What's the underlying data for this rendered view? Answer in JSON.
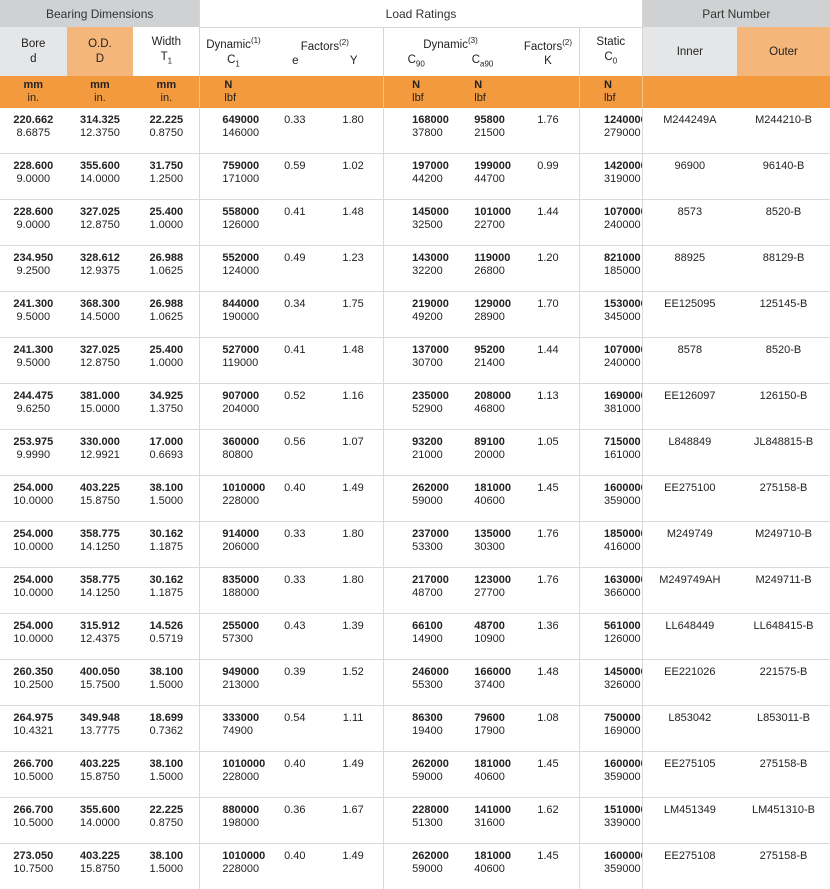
{
  "headers": {
    "bearing_dimensions": "Bearing Dimensions",
    "load_ratings": "Load Ratings",
    "part_number": "Part Number",
    "bore": "Bore",
    "bore_sym": "d",
    "od": "O.D.",
    "od_sym": "D",
    "width": "Width",
    "width_sym": "T",
    "width_sub": "1",
    "dynamic1": "Dynamic",
    "dynamic1_sup": "(1)",
    "dynamic1_sym": "C",
    "dynamic1_sub": "1",
    "factors2": "Factors",
    "factors2_sup": "(2)",
    "e": "e",
    "y": "Y",
    "dynamic3": "Dynamic",
    "dynamic3_sup": "(3)",
    "c90": "C",
    "c90_sub": "90",
    "ca90": "C",
    "ca90_sub": "a90",
    "factors2b": "Factors",
    "factors2b_sup": "(2)",
    "k": "K",
    "static": "Static",
    "c0": "C",
    "c0_sub": "0",
    "inner": "Inner",
    "outer": "Outer"
  },
  "units": {
    "mm": "mm",
    "in": "in.",
    "n": "N",
    "lbf": "lbf"
  },
  "rows": [
    {
      "bore_mm": "220.662",
      "bore_in": "8.6875",
      "od_mm": "314.325",
      "od_in": "12.3750",
      "w_mm": "22.225",
      "w_in": "0.8750",
      "c1_n": "649000",
      "c1_lbf": "146000",
      "e": "0.33",
      "y": "1.80",
      "c90_n": "168000",
      "c90_lbf": "37800",
      "ca90_n": "95800",
      "ca90_lbf": "21500",
      "k": "1.76",
      "c0_n": "1240000",
      "c0_lbf": "279000",
      "inner": "M244249A",
      "outer": "M244210-B"
    },
    {
      "bore_mm": "228.600",
      "bore_in": "9.0000",
      "od_mm": "355.600",
      "od_in": "14.0000",
      "w_mm": "31.750",
      "w_in": "1.2500",
      "c1_n": "759000",
      "c1_lbf": "171000",
      "e": "0.59",
      "y": "1.02",
      "c90_n": "197000",
      "c90_lbf": "44200",
      "ca90_n": "199000",
      "ca90_lbf": "44700",
      "k": "0.99",
      "c0_n": "1420000",
      "c0_lbf": "319000",
      "inner": "96900",
      "outer": "96140-B"
    },
    {
      "bore_mm": "228.600",
      "bore_in": "9.0000",
      "od_mm": "327.025",
      "od_in": "12.8750",
      "w_mm": "25.400",
      "w_in": "1.0000",
      "c1_n": "558000",
      "c1_lbf": "126000",
      "e": "0.41",
      "y": "1.48",
      "c90_n": "145000",
      "c90_lbf": "32500",
      "ca90_n": "101000",
      "ca90_lbf": "22700",
      "k": "1.44",
      "c0_n": "1070000",
      "c0_lbf": "240000",
      "inner": "8573",
      "outer": "8520-B"
    },
    {
      "bore_mm": "234.950",
      "bore_in": "9.2500",
      "od_mm": "328.612",
      "od_in": "12.9375",
      "w_mm": "26.988",
      "w_in": "1.0625",
      "c1_n": "552000",
      "c1_lbf": "124000",
      "e": "0.49",
      "y": "1.23",
      "c90_n": "143000",
      "c90_lbf": "32200",
      "ca90_n": "119000",
      "ca90_lbf": "26800",
      "k": "1.20",
      "c0_n": "821000",
      "c0_lbf": "185000",
      "inner": "88925",
      "outer": "88129-B"
    },
    {
      "bore_mm": "241.300",
      "bore_in": "9.5000",
      "od_mm": "368.300",
      "od_in": "14.5000",
      "w_mm": "26.988",
      "w_in": "1.0625",
      "c1_n": "844000",
      "c1_lbf": "190000",
      "e": "0.34",
      "y": "1.75",
      "c90_n": "219000",
      "c90_lbf": "49200",
      "ca90_n": "129000",
      "ca90_lbf": "28900",
      "k": "1.70",
      "c0_n": "1530000",
      "c0_lbf": "345000",
      "inner": "EE125095",
      "outer": "125145-B"
    },
    {
      "bore_mm": "241.300",
      "bore_in": "9.5000",
      "od_mm": "327.025",
      "od_in": "12.8750",
      "w_mm": "25.400",
      "w_in": "1.0000",
      "c1_n": "527000",
      "c1_lbf": "119000",
      "e": "0.41",
      "y": "1.48",
      "c90_n": "137000",
      "c90_lbf": "30700",
      "ca90_n": "95200",
      "ca90_lbf": "21400",
      "k": "1.44",
      "c0_n": "1070000",
      "c0_lbf": "240000",
      "inner": "8578",
      "outer": "8520-B"
    },
    {
      "bore_mm": "244.475",
      "bore_in": "9.6250",
      "od_mm": "381.000",
      "od_in": "15.0000",
      "w_mm": "34.925",
      "w_in": "1.3750",
      "c1_n": "907000",
      "c1_lbf": "204000",
      "e": "0.52",
      "y": "1.16",
      "c90_n": "235000",
      "c90_lbf": "52900",
      "ca90_n": "208000",
      "ca90_lbf": "46800",
      "k": "1.13",
      "c0_n": "1690000",
      "c0_lbf": "381000",
      "inner": "EE126097",
      "outer": "126150-B"
    },
    {
      "bore_mm": "253.975",
      "bore_in": "9.9990",
      "od_mm": "330.000",
      "od_in": "12.9921",
      "w_mm": "17.000",
      "w_in": "0.6693",
      "c1_n": "360000",
      "c1_lbf": "80800",
      "e": "0.56",
      "y": "1.07",
      "c90_n": "93200",
      "c90_lbf": "21000",
      "ca90_n": "89100",
      "ca90_lbf": "20000",
      "k": "1.05",
      "c0_n": "715000",
      "c0_lbf": "161000",
      "inner": "L848849",
      "outer": "JL848815-B"
    },
    {
      "bore_mm": "254.000",
      "bore_in": "10.0000",
      "od_mm": "403.225",
      "od_in": "15.8750",
      "w_mm": "38.100",
      "w_in": "1.5000",
      "c1_n": "1010000",
      "c1_lbf": "228000",
      "e": "0.40",
      "y": "1.49",
      "c90_n": "262000",
      "c90_lbf": "59000",
      "ca90_n": "181000",
      "ca90_lbf": "40600",
      "k": "1.45",
      "c0_n": "1600000",
      "c0_lbf": "359000",
      "inner": "EE275100",
      "outer": "275158-B"
    },
    {
      "bore_mm": "254.000",
      "bore_in": "10.0000",
      "od_mm": "358.775",
      "od_in": "14.1250",
      "w_mm": "30.162",
      "w_in": "1.1875",
      "c1_n": "914000",
      "c1_lbf": "206000",
      "e": "0.33",
      "y": "1.80",
      "c90_n": "237000",
      "c90_lbf": "53300",
      "ca90_n": "135000",
      "ca90_lbf": "30300",
      "k": "1.76",
      "c0_n": "1850000",
      "c0_lbf": "416000",
      "inner": "M249749",
      "outer": "M249710-B"
    },
    {
      "bore_mm": "254.000",
      "bore_in": "10.0000",
      "od_mm": "358.775",
      "od_in": "14.1250",
      "w_mm": "30.162",
      "w_in": "1.1875",
      "c1_n": "835000",
      "c1_lbf": "188000",
      "e": "0.33",
      "y": "1.80",
      "c90_n": "217000",
      "c90_lbf": "48700",
      "ca90_n": "123000",
      "ca90_lbf": "27700",
      "k": "1.76",
      "c0_n": "1630000",
      "c0_lbf": "366000",
      "inner": "M249749AH",
      "outer": "M249711-B"
    },
    {
      "bore_mm": "254.000",
      "bore_in": "10.0000",
      "od_mm": "315.912",
      "od_in": "12.4375",
      "w_mm": "14.526",
      "w_in": "0.5719",
      "c1_n": "255000",
      "c1_lbf": "57300",
      "e": "0.43",
      "y": "1.39",
      "c90_n": "66100",
      "c90_lbf": "14900",
      "ca90_n": "48700",
      "ca90_lbf": "10900",
      "k": "1.36",
      "c0_n": "561000",
      "c0_lbf": "126000",
      "inner": "LL648449",
      "outer": "LL648415-B"
    },
    {
      "bore_mm": "260.350",
      "bore_in": "10.2500",
      "od_mm": "400.050",
      "od_in": "15.7500",
      "w_mm": "38.100",
      "w_in": "1.5000",
      "c1_n": "949000",
      "c1_lbf": "213000",
      "e": "0.39",
      "y": "1.52",
      "c90_n": "246000",
      "c90_lbf": "55300",
      "ca90_n": "166000",
      "ca90_lbf": "37400",
      "k": "1.48",
      "c0_n": "1450000",
      "c0_lbf": "326000",
      "inner": "EE221026",
      "outer": "221575-B"
    },
    {
      "bore_mm": "264.975",
      "bore_in": "10.4321",
      "od_mm": "349.948",
      "od_in": "13.7775",
      "w_mm": "18.699",
      "w_in": "0.7362",
      "c1_n": "333000",
      "c1_lbf": "74900",
      "e": "0.54",
      "y": "1.11",
      "c90_n": "86300",
      "c90_lbf": "19400",
      "ca90_n": "79600",
      "ca90_lbf": "17900",
      "k": "1.08",
      "c0_n": "750000",
      "c0_lbf": "169000",
      "inner": "L853042",
      "outer": "L853011-B"
    },
    {
      "bore_mm": "266.700",
      "bore_in": "10.5000",
      "od_mm": "403.225",
      "od_in": "15.8750",
      "w_mm": "38.100",
      "w_in": "1.5000",
      "c1_n": "1010000",
      "c1_lbf": "228000",
      "e": "0.40",
      "y": "1.49",
      "c90_n": "262000",
      "c90_lbf": "59000",
      "ca90_n": "181000",
      "ca90_lbf": "40600",
      "k": "1.45",
      "c0_n": "1600000",
      "c0_lbf": "359000",
      "inner": "EE275105",
      "outer": "275158-B"
    },
    {
      "bore_mm": "266.700",
      "bore_in": "10.5000",
      "od_mm": "355.600",
      "od_in": "14.0000",
      "w_mm": "22.225",
      "w_in": "0.8750",
      "c1_n": "880000",
      "c1_lbf": "198000",
      "e": "0.36",
      "y": "1.67",
      "c90_n": "228000",
      "c90_lbf": "51300",
      "ca90_n": "141000",
      "ca90_lbf": "31600",
      "k": "1.62",
      "c0_n": "1510000",
      "c0_lbf": "339000",
      "inner": "LM451349",
      "outer": "LM451310-B"
    },
    {
      "bore_mm": "273.050",
      "bore_in": "10.7500",
      "od_mm": "403.225",
      "od_in": "15.8750",
      "w_mm": "38.100",
      "w_in": "1.5000",
      "c1_n": "1010000",
      "c1_lbf": "228000",
      "e": "0.40",
      "y": "1.49",
      "c90_n": "262000",
      "c90_lbf": "59000",
      "ca90_n": "181000",
      "ca90_lbf": "40600",
      "k": "1.45",
      "c0_n": "1600000",
      "c0_lbf": "359000",
      "inner": "EE275108",
      "outer": "275158-B"
    }
  ]
}
